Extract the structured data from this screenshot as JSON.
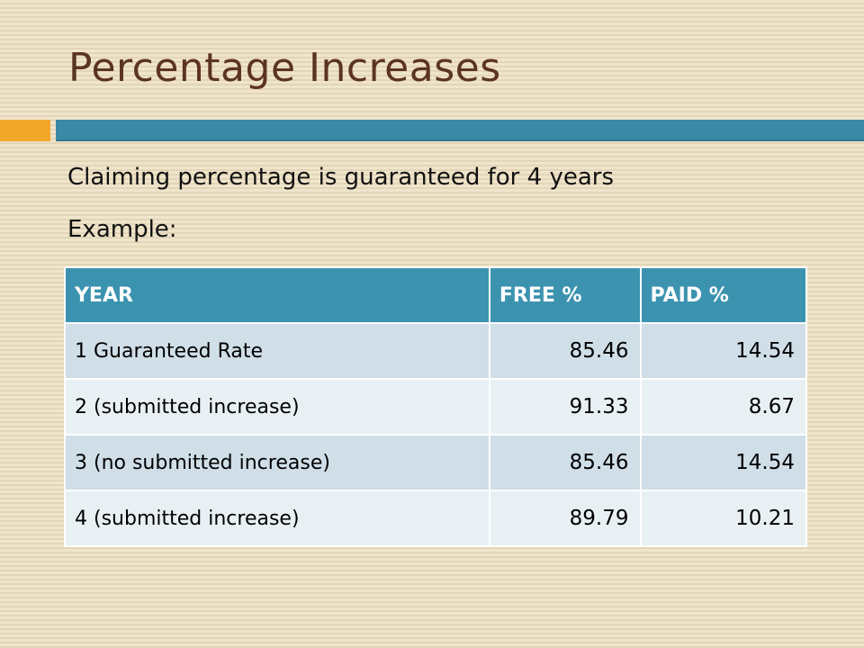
{
  "slide": {
    "title": "Percentage Increases",
    "bullets": [
      "Claiming percentage is guaranteed for 4 years",
      "Example:"
    ]
  },
  "table": {
    "headers": [
      "YEAR",
      "FREE %",
      "PAID %"
    ],
    "rows": [
      {
        "year": "1  Guaranteed Rate",
        "free": "85.46",
        "paid": "14.54"
      },
      {
        "year": "2  (submitted increase)",
        "free": "91.33",
        "paid": "8.67"
      },
      {
        "year": "3 (no submitted increase)",
        "free": "85.46",
        "paid": "14.54"
      },
      {
        "year": "4 (submitted increase)",
        "free": "89.79",
        "paid": "10.21"
      }
    ]
  },
  "colors": {
    "background": "#ece0c6",
    "title": "#5b3420",
    "accent_orange": "#f2a62a",
    "accent_teal": "#3b8aa5",
    "header_fill": "#3c93b0",
    "row_dark": "#cfdee7",
    "row_light": "#e9f0f4"
  }
}
